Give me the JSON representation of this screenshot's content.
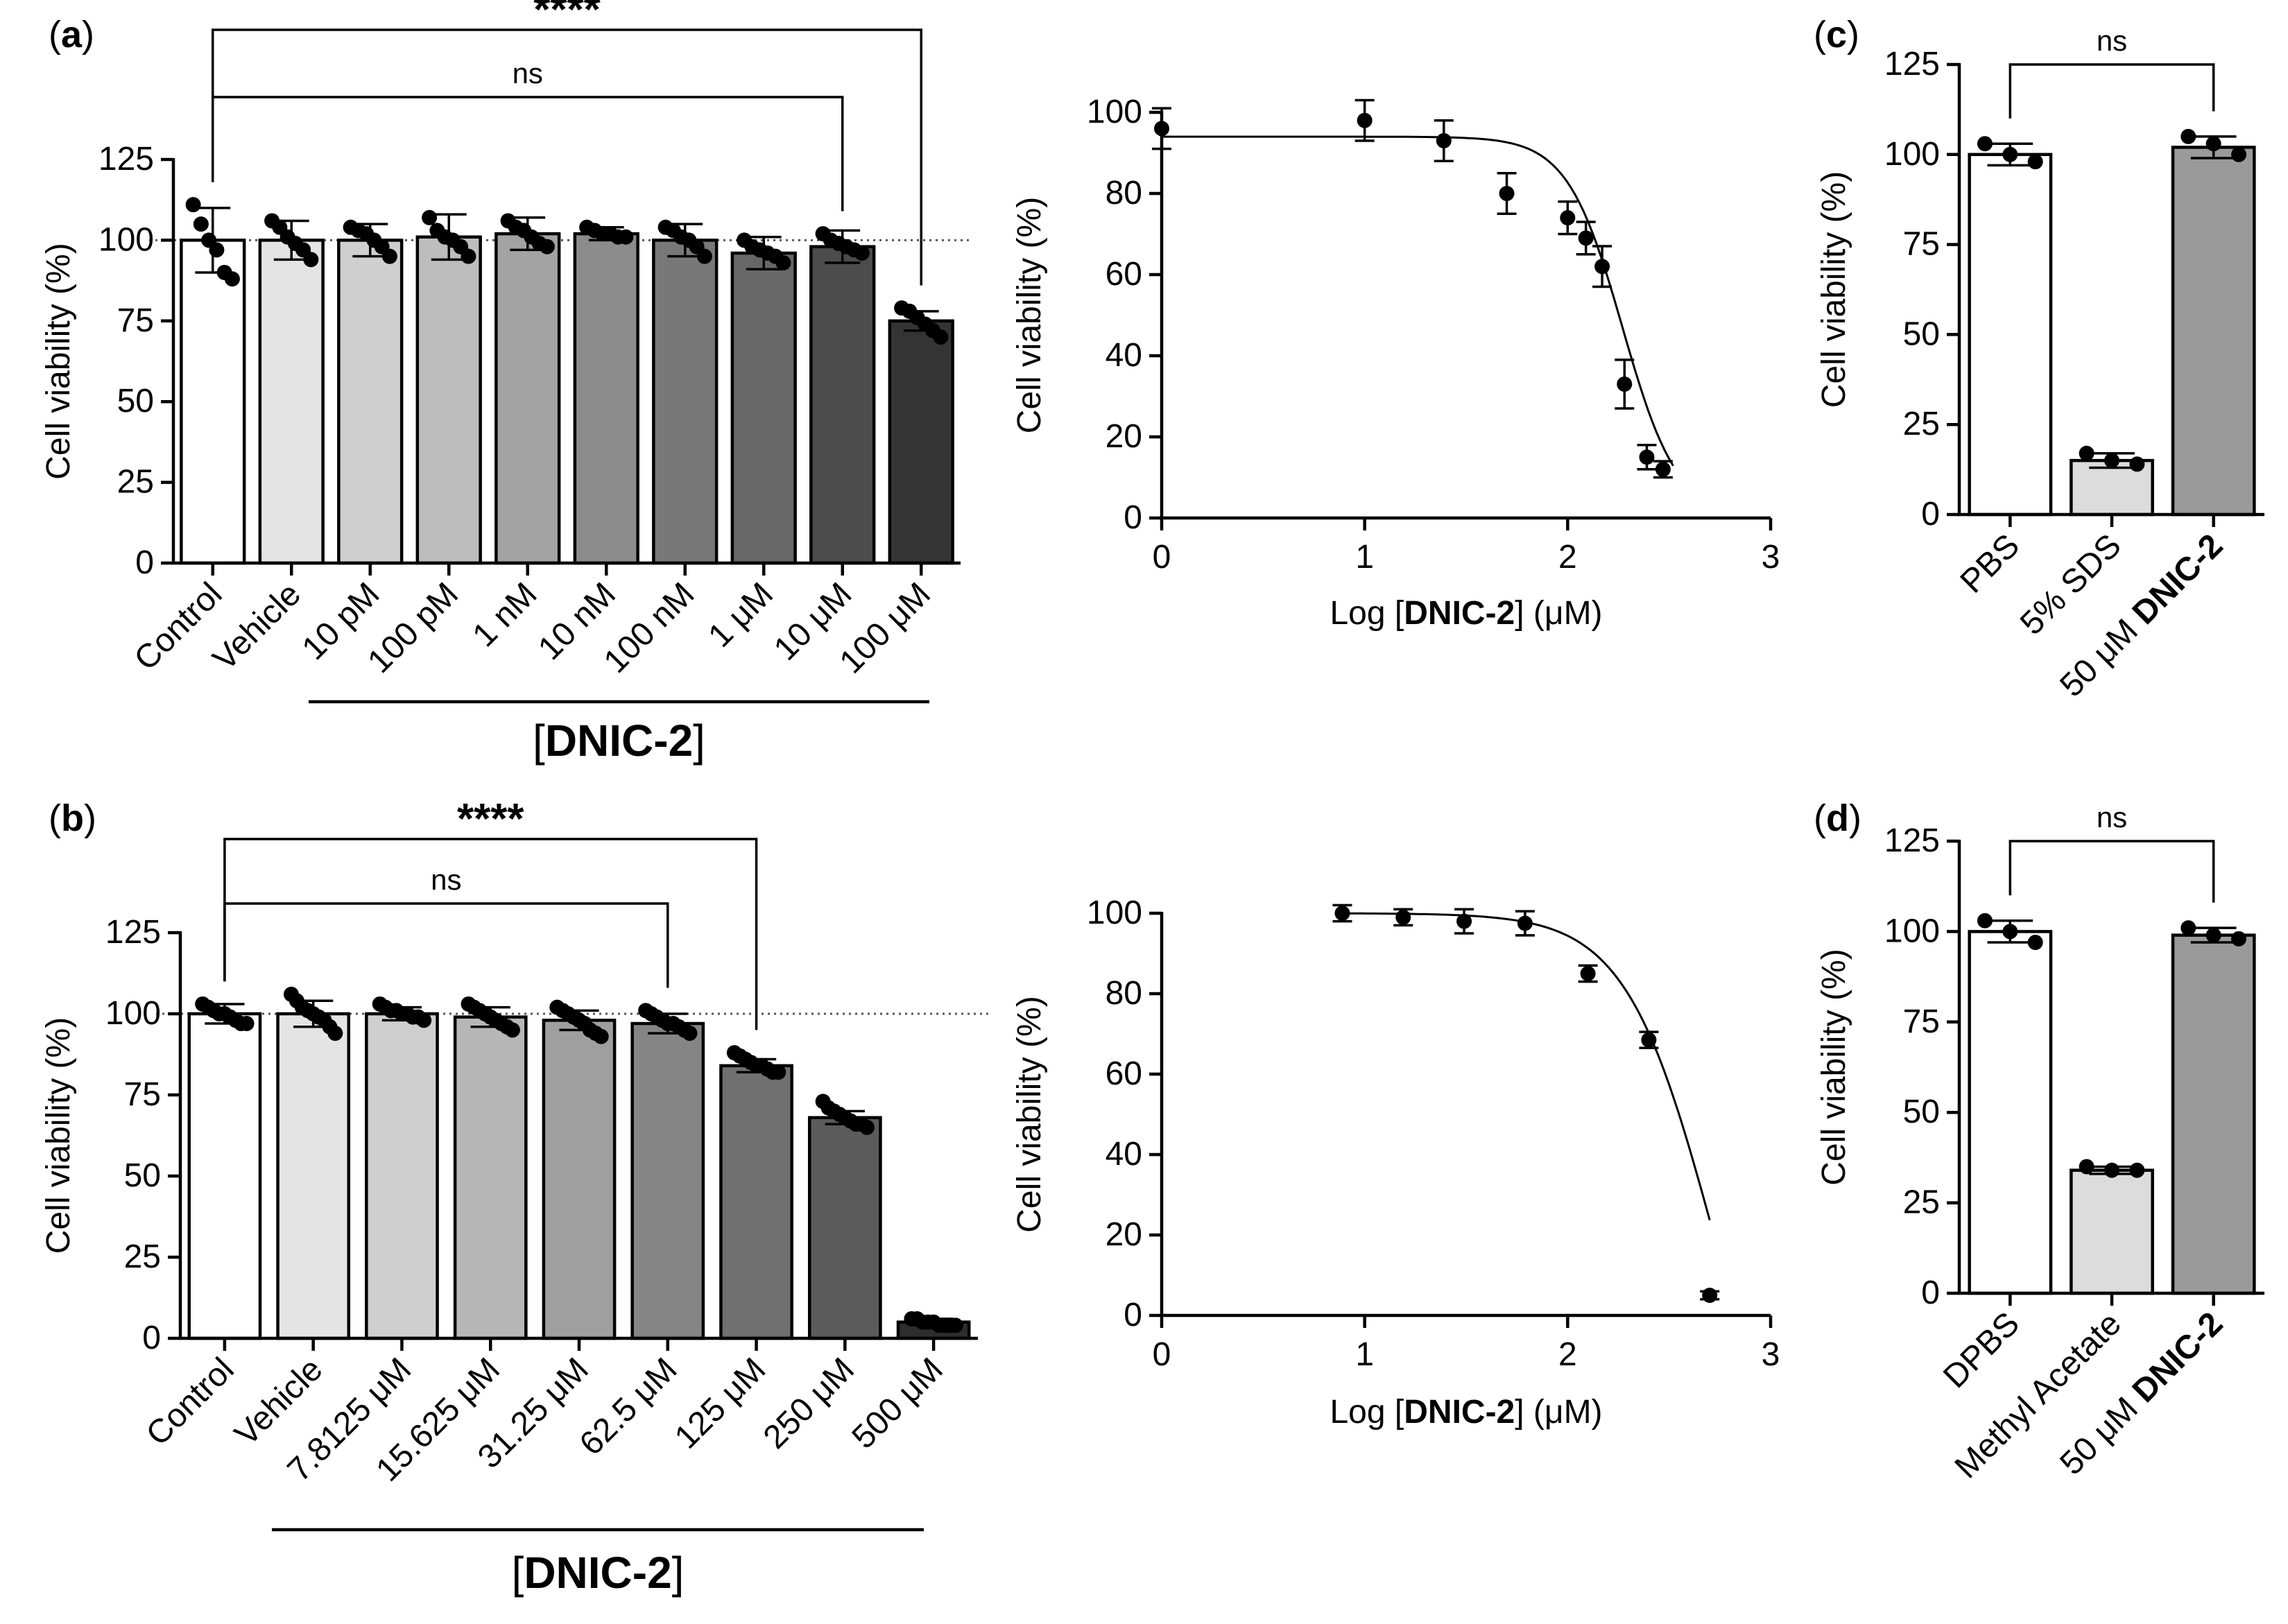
{
  "chart_data": [
    {
      "id": "a_bar",
      "type": "bar",
      "panel_label": "(a)",
      "ylabel": "Cell viability (%)",
      "ylim": [
        0,
        125
      ],
      "yticks": [
        0,
        25,
        50,
        75,
        100,
        125
      ],
      "reference_line": 100,
      "categories": [
        "Control",
        "Vehicle",
        "10 pM",
        "100 pM",
        "1 nM",
        "10 nM",
        "100 nM",
        "1 μM",
        "10 μM",
        "100 μM"
      ],
      "values": [
        100,
        100,
        100,
        101,
        102,
        102,
        100,
        96,
        98,
        75
      ],
      "errors": [
        10,
        6,
        5,
        7,
        5,
        2,
        5,
        5,
        5,
        3
      ],
      "bar_colors": [
        "#ffffff",
        "#e4e4e4",
        "#cfcfcf",
        "#bdbdbd",
        "#a3a3a3",
        "#8c8c8c",
        "#787878",
        "#676767",
        "#4c4c4c",
        "#343434"
      ],
      "points": [
        [
          111,
          105,
          100,
          97,
          90,
          88
        ],
        [
          106,
          104,
          101,
          99,
          97,
          94
        ],
        [
          104,
          103,
          102,
          100,
          98,
          95
        ],
        [
          107,
          103,
          101,
          100,
          98,
          95
        ],
        [
          106,
          104,
          103,
          101,
          99,
          98
        ],
        [
          104,
          103,
          102,
          102,
          101,
          101
        ],
        [
          104,
          103,
          101,
          100,
          98,
          95
        ],
        [
          100,
          98,
          97,
          96,
          95,
          93
        ],
        [
          102,
          100,
          99,
          98,
          97,
          96
        ],
        [
          79,
          78,
          76,
          74,
          72,
          70
        ]
      ],
      "group_label_open": "[",
      "group_label": "DNIC-2",
      "group_label_close": "]",
      "comparisons": [
        {
          "from": 0,
          "to": 9,
          "label": "****"
        },
        {
          "from": 0,
          "to": 8,
          "label": "ns"
        }
      ]
    },
    {
      "id": "a_curve",
      "type": "scatter",
      "ylabel": "Cell viability (%)",
      "xlabel_prefix": "Log [",
      "xlabel_bold": "DNIC-2",
      "xlabel_suffix": "] (μM)",
      "xlim": [
        0,
        3
      ],
      "ylim": [
        0,
        100
      ],
      "xticks": [
        0,
        1,
        2,
        3
      ],
      "yticks": [
        0,
        20,
        40,
        60,
        80,
        100
      ],
      "x": [
        0,
        1,
        1.39,
        1.7,
        2,
        2.09,
        2.17,
        2.28,
        2.39,
        2.47
      ],
      "y": [
        96,
        98,
        93,
        80,
        74,
        69,
        62,
        33,
        15,
        12
      ],
      "err": [
        5,
        5,
        5,
        5,
        4,
        4,
        5,
        6,
        3,
        2
      ],
      "fit": {
        "top": 94,
        "bottom": 0,
        "logIC50": 2.27,
        "hill": 3.2,
        "x_start": 0,
        "x_end": 2.52
      }
    },
    {
      "id": "b_bar",
      "type": "bar",
      "panel_label": "(b)",
      "ylabel": "Cell viability (%)",
      "ylim": [
        0,
        125
      ],
      "yticks": [
        0,
        25,
        50,
        75,
        100,
        125
      ],
      "reference_line": 100,
      "categories": [
        "Control",
        "Vehicle",
        "7.8125 μM",
        "15.625 μM",
        "31.25 μM",
        "62.5 μM",
        "125 μM",
        "250 μM",
        "500 μM"
      ],
      "values": [
        100,
        100,
        100,
        99,
        98,
        97,
        84,
        68,
        5
      ],
      "errors": [
        3,
        4,
        2,
        3,
        3,
        3,
        2,
        2,
        1
      ],
      "bar_colors": [
        "#ffffff",
        "#e4e4e4",
        "#cfcfcf",
        "#b7b7b7",
        "#9f9f9f",
        "#858585",
        "#707070",
        "#5b5b5b",
        "#2d2d2d"
      ],
      "points": [
        [
          103,
          102,
          101,
          100,
          100,
          99,
          98,
          97,
          97
        ],
        [
          106,
          104,
          102,
          101,
          100,
          99,
          98,
          96,
          94
        ],
        [
          103,
          102,
          101,
          101,
          100,
          100,
          99,
          99,
          98
        ],
        [
          103,
          102,
          101,
          100,
          99,
          98,
          97,
          96,
          95
        ],
        [
          102,
          101,
          100,
          99,
          98,
          97,
          95,
          94,
          93
        ],
        [
          101,
          100,
          99,
          98,
          97,
          97,
          96,
          95,
          94
        ],
        [
          88,
          87,
          86,
          85,
          84,
          84,
          83,
          82,
          82
        ],
        [
          73,
          71,
          70,
          69,
          68,
          67,
          66,
          66,
          65
        ],
        [
          6,
          6,
          5,
          5,
          5,
          4,
          4,
          4,
          4
        ]
      ],
      "group_label_open": "[",
      "group_label": "DNIC-2",
      "group_label_close": "]",
      "comparisons": [
        {
          "from": 0,
          "to": 6,
          "label": "****"
        },
        {
          "from": 0,
          "to": 5,
          "label": "ns"
        }
      ]
    },
    {
      "id": "b_curve",
      "type": "scatter",
      "ylabel": "Cell viability (%)",
      "xlabel_prefix": "Log [",
      "xlabel_bold": "DNIC-2",
      "xlabel_suffix": "] (μM)",
      "xlim": [
        0,
        3
      ],
      "ylim": [
        0,
        100
      ],
      "xticks": [
        0,
        1,
        2,
        3
      ],
      "yticks": [
        0,
        20,
        40,
        60,
        80,
        100
      ],
      "x": [
        0.89,
        1.19,
        1.49,
        1.79,
        2.1,
        2.4,
        2.7
      ],
      "y": [
        100,
        99,
        98,
        97.5,
        85,
        68.5,
        5
      ],
      "err": [
        2,
        2,
        3,
        3,
        2,
        2,
        1
      ],
      "fit": {
        "top": 100,
        "bottom": -60,
        "logIC50": 2.72,
        "hill": 2.0,
        "x_start": 0.89,
        "x_end": 2.7
      }
    },
    {
      "id": "c_bar",
      "type": "bar",
      "panel_label": "(c)",
      "ylabel": "Cell viability (%)",
      "ylim": [
        0,
        125
      ],
      "yticks": [
        0,
        25,
        50,
        75,
        100,
        125
      ],
      "categories": [
        "PBS",
        "5% SDS",
        "50 μM "
      ],
      "category_bold_suffix": [
        "",
        "",
        "DNIC-2"
      ],
      "values": [
        100,
        15,
        102
      ],
      "errors": [
        3,
        2,
        3
      ],
      "bar_colors": [
        "#ffffff",
        "#dcdcdc",
        "#9a9a9a"
      ],
      "points": [
        [
          103,
          100,
          98
        ],
        [
          17,
          15,
          14
        ],
        [
          105,
          103,
          100
        ]
      ],
      "comparisons": [
        {
          "from": 0,
          "to": 2,
          "label": "ns"
        }
      ]
    },
    {
      "id": "d_bar",
      "type": "bar",
      "panel_label": "(d)",
      "ylabel": "Cell viability (%)",
      "ylim": [
        0,
        125
      ],
      "yticks": [
        0,
        25,
        50,
        75,
        100,
        125
      ],
      "categories": [
        "DPBS",
        "Methyl Acetate",
        "50 μM "
      ],
      "category_bold_suffix": [
        "",
        "",
        "DNIC-2"
      ],
      "values": [
        100,
        34,
        99
      ],
      "errors": [
        3,
        1,
        2
      ],
      "bar_colors": [
        "#ffffff",
        "#dcdcdc",
        "#9a9a9a"
      ],
      "points": [
        [
          103,
          100,
          97
        ],
        [
          35,
          34,
          34
        ],
        [
          101,
          99,
          98
        ]
      ],
      "comparisons": [
        {
          "from": 0,
          "to": 2,
          "label": "ns"
        }
      ]
    }
  ]
}
